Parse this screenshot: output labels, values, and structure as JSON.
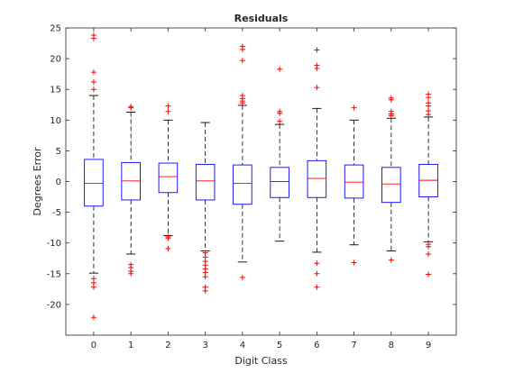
{
  "chart_data": {
    "type": "boxplot",
    "title": "Residuals",
    "xlabel": "Digit Class",
    "ylabel": "Degrees Error",
    "categories": [
      "0",
      "1",
      "2",
      "3",
      "4",
      "5",
      "6",
      "7",
      "8",
      "9"
    ],
    "ylim": [
      -25,
      25
    ],
    "yticks": [
      -20,
      -15,
      -10,
      -5,
      0,
      5,
      10,
      15,
      20,
      25
    ],
    "grid": false,
    "colors": {
      "box": "#0000ff",
      "median": "#ff0000",
      "whisker": "#000000",
      "outlier": "#ff0000"
    },
    "boxes": [
      {
        "category": "0",
        "q1": -4.0,
        "median": -0.3,
        "q3": 3.6,
        "whisker_low": -14.9,
        "whisker_high": 14.0,
        "outliers": [
          23.8,
          23.3,
          17.8,
          16.2,
          15.0,
          -15.8,
          -16.5,
          -17.2,
          -22.1
        ]
      },
      {
        "category": "1",
        "q1": -3.0,
        "median": 0.1,
        "q3": 3.1,
        "whisker_low": -11.8,
        "whisker_high": 11.3,
        "outliers": [
          12.2,
          12.0,
          -13.5,
          -14.0,
          -14.6,
          -15.0
        ]
      },
      {
        "category": "2",
        "q1": -1.8,
        "median": 0.8,
        "q3": 3.0,
        "whisker_low": -8.8,
        "whisker_high": 10.0,
        "outliers": [
          12.3,
          11.4,
          -9.0,
          -9.2,
          -10.9
        ]
      },
      {
        "category": "3",
        "q1": -3.0,
        "median": 0.1,
        "q3": 2.8,
        "whisker_low": -11.3,
        "whisker_high": 9.6,
        "outliers": [
          -11.6,
          -12.3,
          -13.0,
          -13.6,
          -14.2,
          -14.8,
          -15.5,
          -17.2,
          -17.8
        ]
      },
      {
        "category": "4",
        "q1": -3.7,
        "median": -0.3,
        "q3": 2.7,
        "whisker_low": -13.1,
        "whisker_high": 12.4,
        "outliers": [
          22.0,
          21.5,
          19.7,
          14.0,
          13.5,
          13.1,
          12.8,
          -15.6
        ]
      },
      {
        "category": "5",
        "q1": -2.6,
        "median": 0.0,
        "q3": 2.3,
        "whisker_low": -9.7,
        "whisker_high": 9.3,
        "outliers": [
          18.3,
          11.4,
          11.1,
          9.8
        ]
      },
      {
        "category": "6",
        "q1": -2.6,
        "median": 0.5,
        "q3": 3.4,
        "whisker_low": -11.5,
        "whisker_high": 11.9,
        "outliers": [
          21.4,
          18.9,
          18.4,
          15.3,
          -13.3,
          -15.0,
          -17.2
        ]
      },
      {
        "category": "7",
        "q1": -2.7,
        "median": -0.1,
        "q3": 2.7,
        "whisker_low": -10.3,
        "whisker_high": 10.0,
        "outliers": [
          12.0,
          -13.2
        ]
      },
      {
        "category": "8",
        "q1": -3.4,
        "median": -0.4,
        "q3": 2.3,
        "whisker_low": -11.3,
        "whisker_high": 10.3,
        "outliers": [
          13.6,
          13.3,
          11.4,
          11.0,
          10.7,
          -12.8
        ]
      },
      {
        "category": "9",
        "q1": -2.5,
        "median": 0.2,
        "q3": 2.8,
        "whisker_low": -9.8,
        "whisker_high": 10.5,
        "outliers": [
          14.2,
          13.7,
          12.8,
          12.3,
          11.5,
          10.9,
          -10.2,
          -10.6,
          -11.8,
          -15.1
        ]
      }
    ]
  }
}
